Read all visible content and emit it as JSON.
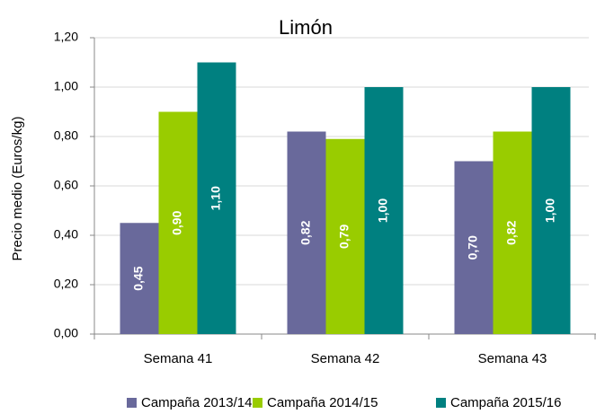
{
  "chart_data": {
    "type": "bar",
    "title": "Limón",
    "y_label": "Precio medio (Euros/kg)",
    "categories": [
      "Semana 41",
      "Semana 42",
      "Semana 43"
    ],
    "series": [
      {
        "name": "Campaña 2013/14",
        "color": "#69699b",
        "values": [
          0.45,
          0.82,
          0.7
        ],
        "value_labels": [
          "0,45",
          "0,82",
          "0,70"
        ]
      },
      {
        "name": "Campaña 2014/15",
        "color": "#99cc00",
        "values": [
          0.9,
          0.79,
          0.82
        ],
        "value_labels": [
          "0,90",
          "0,79",
          "0,82"
        ]
      },
      {
        "name": "Campaña 2015/16",
        "color": "#008080",
        "values": [
          1.1,
          1.0,
          1.0
        ],
        "value_labels": [
          "1,10",
          "1,00",
          "1,00"
        ]
      }
    ],
    "ylim": [
      0,
      1.2
    ],
    "yticks": [
      {
        "value": 0,
        "label": "0,00"
      },
      {
        "value": 0.2,
        "label": "0,20"
      },
      {
        "value": 0.4,
        "label": "0,40"
      },
      {
        "value": 0.6,
        "label": "0,60"
      },
      {
        "value": 0.8,
        "label": "0,80"
      },
      {
        "value": 1.0,
        "label": "1,00"
      },
      {
        "value": 1.2,
        "label": "1,20"
      }
    ],
    "grid": true,
    "legend": "bottom"
  }
}
